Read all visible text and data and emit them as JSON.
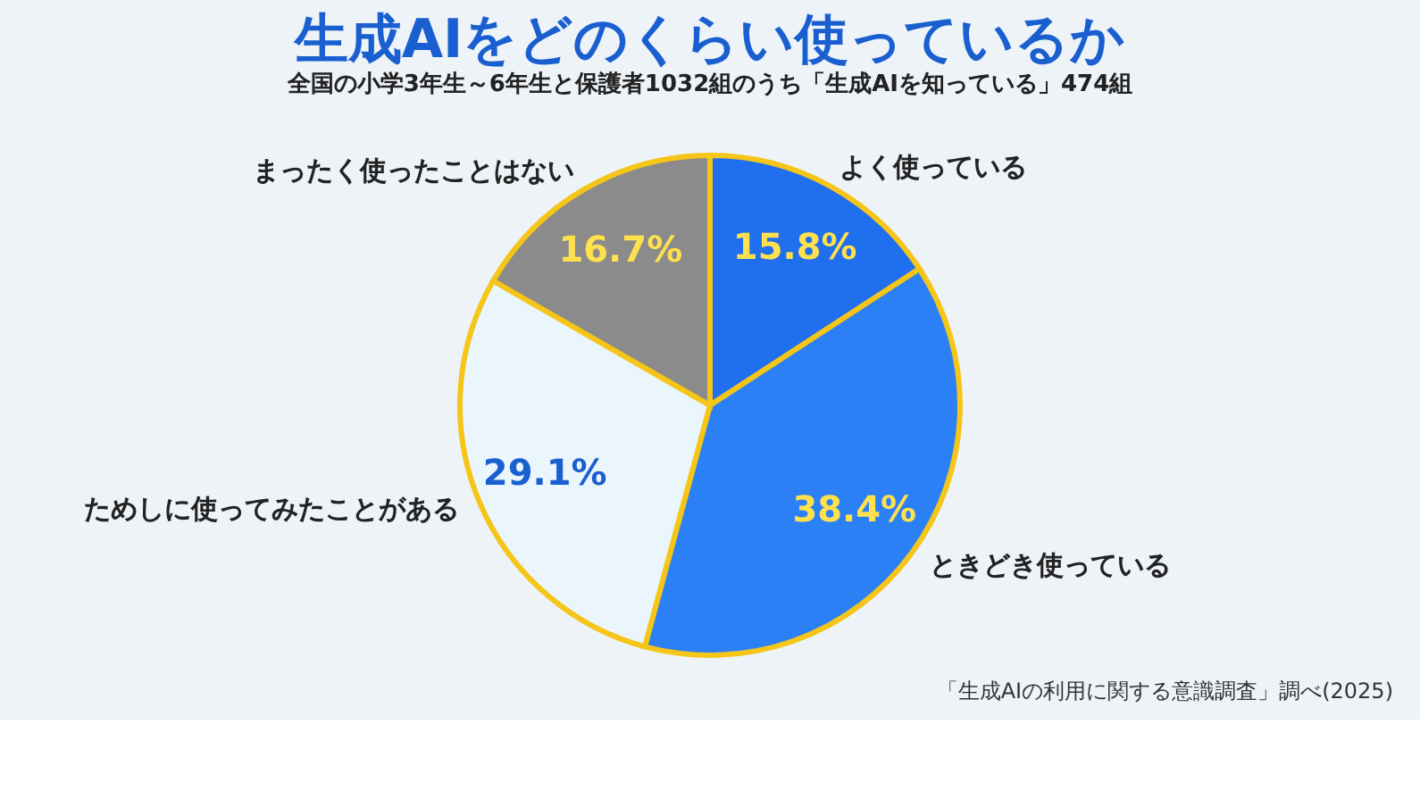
{
  "chart_data": {
    "type": "pie",
    "title": "生成AIをどのくらい使っているか",
    "subtitle": "全国の小学3年生～6年生と保護者1032組のうち「生成AIを知っている」474組",
    "categories": [
      "よく使っている",
      "ときどき使っている",
      "ためしに使ってみたことがある",
      "まったく使ったことはない"
    ],
    "values": [
      15.8,
      38.4,
      29.1,
      16.7
    ],
    "colors": [
      "#1f6fee",
      "#2b80f5",
      "#eaf5fc",
      "#8b8b8b"
    ],
    "value_labels": [
      "15.8%",
      "38.4%",
      "29.1%",
      "16.7%"
    ],
    "annotations": [
      "「生成AIの利用に関する意識調査」調べ(2025)"
    ]
  }
}
